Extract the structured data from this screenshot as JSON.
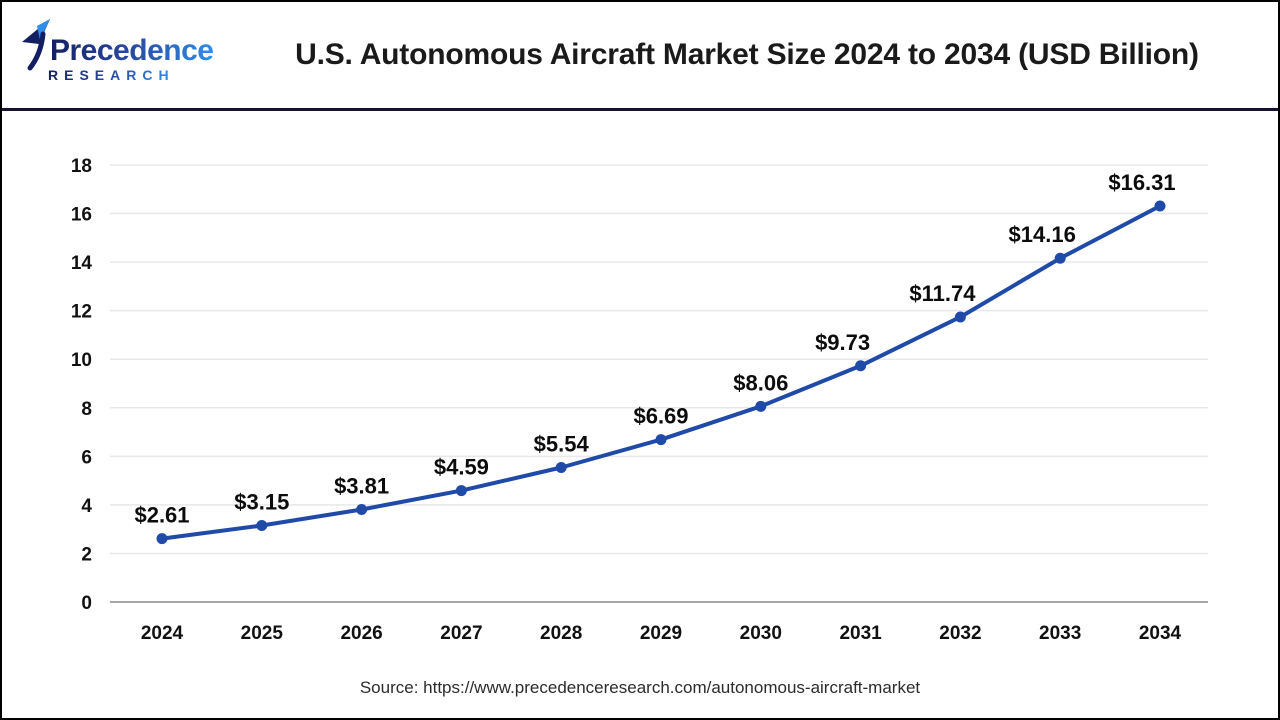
{
  "header": {
    "logo": {
      "brand_top": "Precedence",
      "brand_bottom": "RESEARCH"
    },
    "title": "U.S. Autonomous Aircraft Market Size 2024 to 2034 (USD Billion)"
  },
  "chart_data": {
    "type": "line",
    "title": "U.S. Autonomous Aircraft Market Size 2024 to 2034 (USD Billion)",
    "categories": [
      "2024",
      "2025",
      "2026",
      "2027",
      "2028",
      "2029",
      "2030",
      "2031",
      "2032",
      "2033",
      "2034"
    ],
    "values": [
      2.61,
      3.15,
      3.81,
      4.59,
      5.54,
      6.69,
      8.06,
      9.73,
      11.74,
      14.16,
      16.31
    ],
    "data_labels": [
      "$2.61",
      "$3.15",
      "$3.81",
      "$4.59",
      "$5.54",
      "$6.69",
      "$8.06",
      "$9.73",
      "$11.74",
      "$14.16",
      "$16.31"
    ],
    "yticks": [
      0,
      2,
      4,
      6,
      8,
      10,
      12,
      14,
      16,
      18
    ],
    "ylim": [
      0,
      18
    ],
    "xlabel": "",
    "ylabel": "",
    "grid": true,
    "legend": "none",
    "line_color": "#1F4AA8"
  },
  "footer": {
    "source": "Source: https://www.precedenceresearch.com/autonomous-aircraft-market"
  },
  "colors": {
    "line": "#1F4AA8",
    "grid": "#E8E8E8",
    "axis": "#A6A6A6",
    "divider": "#15132F",
    "title_text": "#1A1A1A",
    "label_text": "#111111",
    "source_text": "#2B2B2B",
    "background": "#FFFFFF",
    "border": "#000000",
    "logo_navy": "#141F63",
    "logo_blue": "#2E8FE8"
  }
}
